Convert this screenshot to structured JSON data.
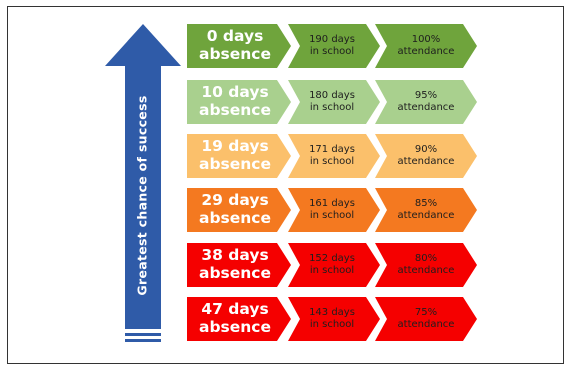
{
  "side_label": "Greatest chance of success",
  "colors": {
    "arrow": "#2f5ba8",
    "rows": [
      "#6fa43c",
      "#a9d08e",
      "#fbc06b",
      "#f47920",
      "#f50000",
      "#f50000"
    ]
  },
  "rows": [
    {
      "absence_days": "0 days",
      "absence_label": "absence",
      "school_days": "190 days",
      "school_label": "in school",
      "attendance_pct": "100%",
      "attendance_label": "attendance"
    },
    {
      "absence_days": "10 days",
      "absence_label": "absence",
      "school_days": "180 days",
      "school_label": "in school",
      "attendance_pct": "95%",
      "attendance_label": "attendance"
    },
    {
      "absence_days": "19 days",
      "absence_label": "absence",
      "school_days": "171 days",
      "school_label": "in school",
      "attendance_pct": "90%",
      "attendance_label": "attendance"
    },
    {
      "absence_days": "29 days",
      "absence_label": "absence",
      "school_days": "161 days",
      "school_label": "in school",
      "attendance_pct": "85%",
      "attendance_label": "attendance"
    },
    {
      "absence_days": "38 days",
      "absence_label": "absence",
      "school_days": "152 days",
      "school_label": "in school",
      "attendance_pct": "80%",
      "attendance_label": "attendance"
    },
    {
      "absence_days": "47 days",
      "absence_label": "absence",
      "school_days": "143 days",
      "school_label": "in school",
      "attendance_pct": "75%",
      "attendance_label": "attendance"
    }
  ]
}
